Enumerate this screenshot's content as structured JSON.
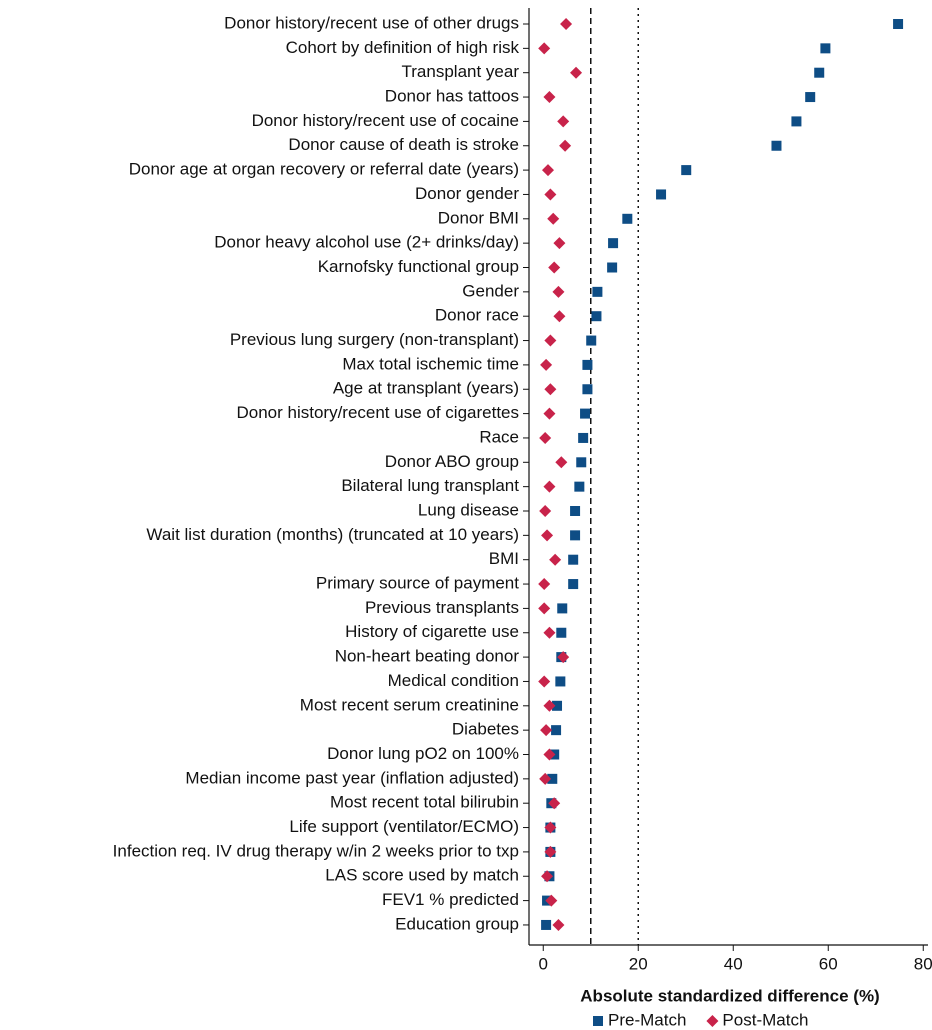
{
  "chart_data": {
    "type": "dot",
    "x_label": "Absolute standardized difference (%)",
    "categories": [
      "Donor history/recent use of other drugs",
      "Cohort by definition of high risk",
      "Transplant year",
      "Donor has tattoos",
      "Donor history/recent use of cocaine",
      "Donor cause of death is stroke",
      "Donor age at organ recovery or referral date (years)",
      "Donor gender",
      "Donor BMI",
      "Donor heavy alcohol use (2+ drinks/day)",
      "Karnofsky functional group",
      "Gender",
      "Donor race",
      "Previous lung surgery (non-transplant)",
      "Max total ischemic time",
      "Age at transplant (years)",
      "Donor history/recent use of cigarettes",
      "Race",
      "Donor ABO group",
      "Bilateral lung transplant",
      "Lung disease",
      "Wait list duration (months) (truncated at 10 years)",
      "BMI",
      "Primary source of payment",
      "Previous transplants",
      "History of cigarette use",
      "Non-heart beating donor",
      "Medical condition",
      "Most recent serum creatinine",
      "Diabetes",
      "Donor lung pO2 on 100%",
      "Median income past year (inflation adjusted)",
      "Most recent total bilirubin",
      "Life support (ventilator/ECMO)",
      "Infection req. IV drug therapy w/in 2 weeks prior to txp",
      "LAS score used by match",
      "FEV1 % predicted",
      "Education group"
    ],
    "series": [
      {
        "name": "Pre-Match",
        "color": "#0e4d85",
        "marker": "square",
        "values": [
          74.7,
          59.4,
          58.1,
          56.2,
          53.3,
          49.1,
          30.1,
          24.8,
          17.7,
          14.7,
          14.5,
          11.4,
          11.2,
          10.1,
          9.3,
          9.3,
          8.8,
          8.4,
          8.0,
          7.6,
          6.7,
          6.7,
          6.3,
          6.3,
          4.0,
          3.8,
          3.8,
          3.6,
          2.9,
          2.7,
          2.3,
          1.9,
          1.7,
          1.5,
          1.5,
          1.3,
          0.8,
          0.6
        ]
      },
      {
        "name": "Post-Match",
        "color": "#c8234a",
        "marker": "diamond",
        "values": [
          4.8,
          0.2,
          6.9,
          1.3,
          4.2,
          4.6,
          1.0,
          1.5,
          2.1,
          3.4,
          2.3,
          3.2,
          3.4,
          1.5,
          0.6,
          1.5,
          1.3,
          0.4,
          3.8,
          1.3,
          0.4,
          0.8,
          2.5,
          0.2,
          0.2,
          1.3,
          4.2,
          0.2,
          1.3,
          0.6,
          1.3,
          0.4,
          2.3,
          1.5,
          1.5,
          0.8,
          1.7,
          3.2
        ]
      }
    ],
    "xlim": [
      -3,
      81
    ],
    "xticks": [
      0,
      20,
      40,
      60,
      80
    ],
    "reference_lines": [
      {
        "value": 10,
        "style": "dashed"
      },
      {
        "value": 20,
        "style": "dotted"
      }
    ],
    "legend": "bottom"
  }
}
